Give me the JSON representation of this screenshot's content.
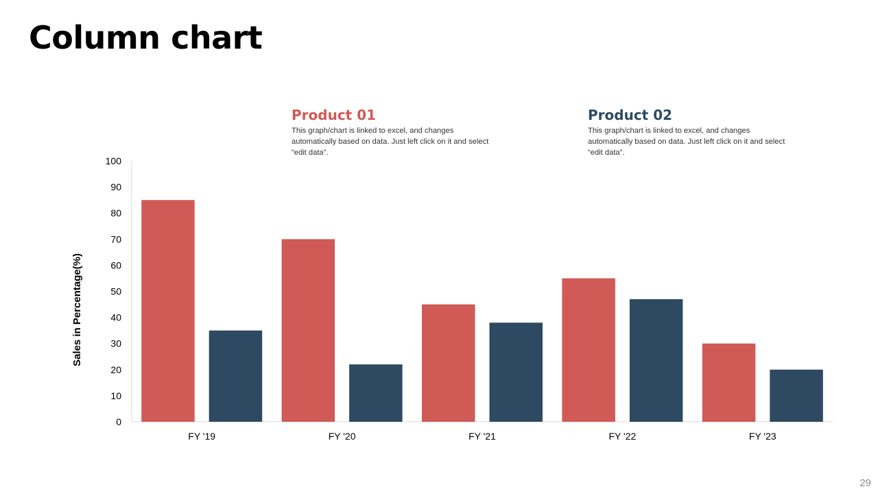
{
  "title": "Column chart",
  "page_number": "29",
  "legend": [
    {
      "name": "Product 01",
      "color": "#d05a56",
      "description": "This graph/chart is linked to excel, and changes automatically based on data. Just left click on it and select “edit data”."
    },
    {
      "name": "Product 02",
      "color": "#2e4a62",
      "description": "This graph/chart is linked to excel, and changes automatically based on data. Just left click on it and select “edit data”."
    }
  ],
  "chart_data": {
    "type": "bar",
    "title": "",
    "xlabel": "",
    "ylabel": "Sales in Percentage(%)",
    "categories": [
      "FY '19",
      "FY '20",
      "FY '21",
      "FY '22",
      "FY '23"
    ],
    "series": [
      {
        "name": "Product 01",
        "color": "#d05a56",
        "values": [
          85,
          70,
          45,
          55,
          30
        ]
      },
      {
        "name": "Product 02",
        "color": "#2e4a62",
        "values": [
          35,
          22,
          38,
          47,
          20
        ]
      }
    ],
    "ylim": [
      0,
      100
    ],
    "yticks": [
      "0",
      "10",
      "20",
      "30",
      "40",
      "50",
      "60",
      "70",
      "80",
      "90",
      "100"
    ],
    "grid": false,
    "legend_position": "top"
  }
}
